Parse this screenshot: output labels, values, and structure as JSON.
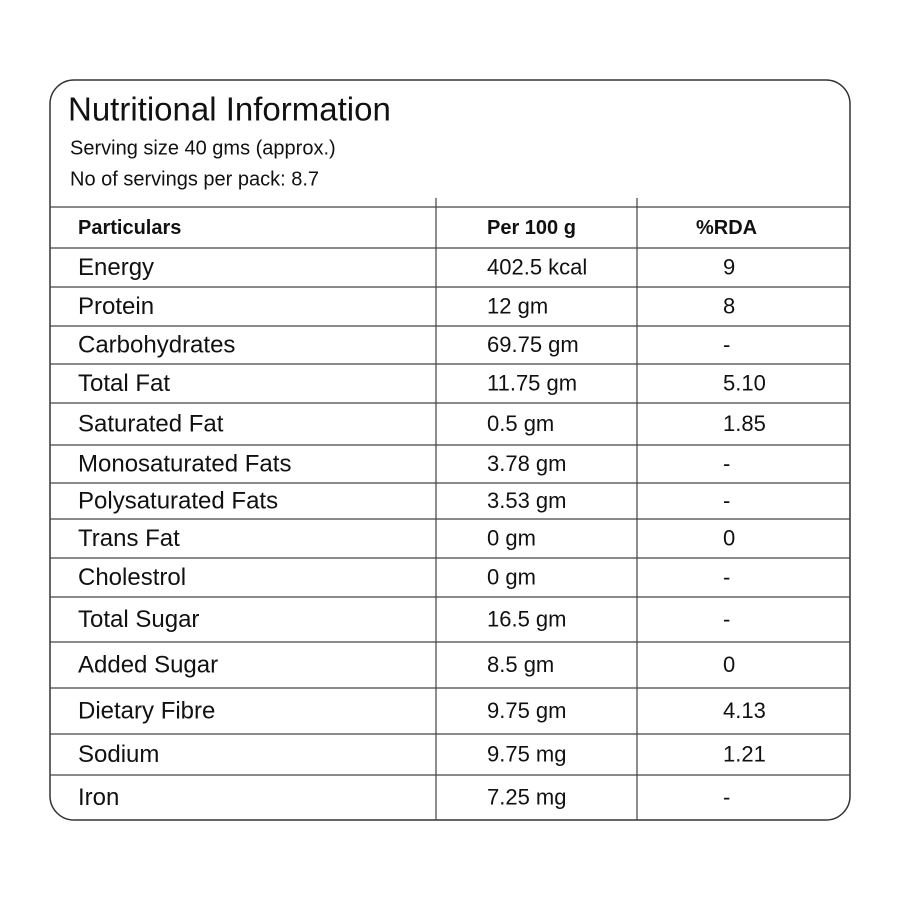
{
  "header": {
    "title": "Nutritional Information",
    "serving_size": "Serving size 40 gms (approx.)",
    "servings_per_pack": "No of servings per pack: 8.7"
  },
  "table": {
    "columns": [
      "Particulars",
      "Per 100 g",
      "%RDA"
    ],
    "rows": [
      [
        "Energy",
        "402.5 kcal",
        "9"
      ],
      [
        "Protein",
        "12 gm",
        "8"
      ],
      [
        "Carbohydrates",
        "69.75 gm",
        "-"
      ],
      [
        "Total Fat",
        "11.75 gm",
        "5.10"
      ],
      [
        "Saturated Fat",
        "0.5 gm",
        "1.85"
      ],
      [
        "Monosaturated Fats",
        "3.78 gm",
        "-"
      ],
      [
        "Polysaturated Fats",
        "3.53 gm",
        "-"
      ],
      [
        "Trans Fat",
        "0 gm",
        "0"
      ],
      [
        "Cholestrol",
        "0 gm",
        "-"
      ],
      [
        "Total Sugar",
        "16.5 gm",
        "-"
      ],
      [
        "Added Sugar",
        "8.5 gm",
        "0"
      ],
      [
        "Dietary Fibre",
        "9.75 gm",
        "4.13"
      ],
      [
        "Sodium",
        "9.75 mg",
        "1.21"
      ],
      [
        "Iron",
        "7.25 mg",
        "-"
      ]
    ]
  }
}
